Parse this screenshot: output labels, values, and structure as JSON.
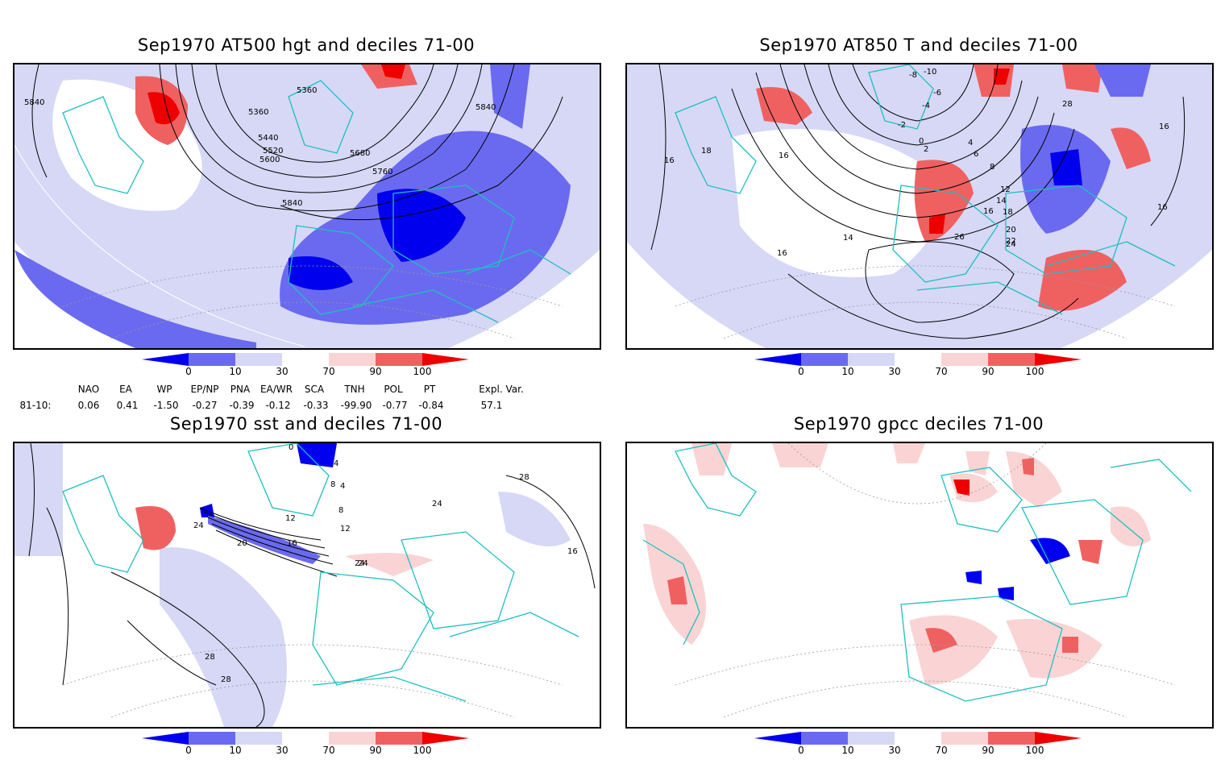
{
  "panels": [
    {
      "id": "p1",
      "title": "Sep1970 AT500 hgt and deciles 71-00",
      "contour_labels": [
        "5840",
        "5360",
        "5360",
        "5440",
        "5520",
        "5600",
        "5680",
        "5760",
        "5840",
        "5840"
      ]
    },
    {
      "id": "p2",
      "title": "Sep1970 AT850 T and deciles 71-00",
      "contour_labels": [
        "-10",
        "-8",
        "-6",
        "-4",
        "-2",
        "0",
        "2",
        "4",
        "6",
        "8",
        "12",
        "14",
        "16",
        "18",
        "20",
        "22",
        "24",
        "26",
        "28",
        "16",
        "18",
        "16",
        "16",
        "16",
        "14",
        "16"
      ]
    },
    {
      "id": "p3",
      "title": "Sep1970 sst and deciles 71-00",
      "contour_labels": [
        "0",
        "4",
        "8",
        "12",
        "16",
        "20",
        "24",
        "24",
        "28",
        "28",
        "28",
        "24",
        "16",
        "12",
        "8",
        "4",
        "24"
      ]
    },
    {
      "id": "p4",
      "title": "Sep1970 gpcc deciles 71-00",
      "contour_labels": []
    }
  ],
  "colorbar": {
    "ticks": [
      "0",
      "10",
      "30",
      "70",
      "90",
      "100"
    ],
    "colors": [
      "#0000ee",
      "#6a6af0",
      "#d6d8f6",
      "#ffffff",
      "#fad4d4",
      "#ef6161",
      "#ee0000"
    ]
  },
  "indices": {
    "headers": [
      "NAO",
      "EA",
      "WP",
      "EP/NP",
      "PNA",
      "EA/WR",
      "SCA",
      "TNH",
      "POL",
      "PT",
      "Expl. Var."
    ],
    "row_label": "81-10:",
    "values": [
      "0.06",
      "0.41",
      "-1.50",
      "-0.27",
      "-0.39",
      "-0.12",
      "-0.33",
      "-99.90",
      "-0.77",
      "-0.84",
      "57.1"
    ]
  },
  "map_colors": {
    "coast": "#1fbfbf",
    "grid": "#9a9a9a",
    "contour": "#000000"
  }
}
